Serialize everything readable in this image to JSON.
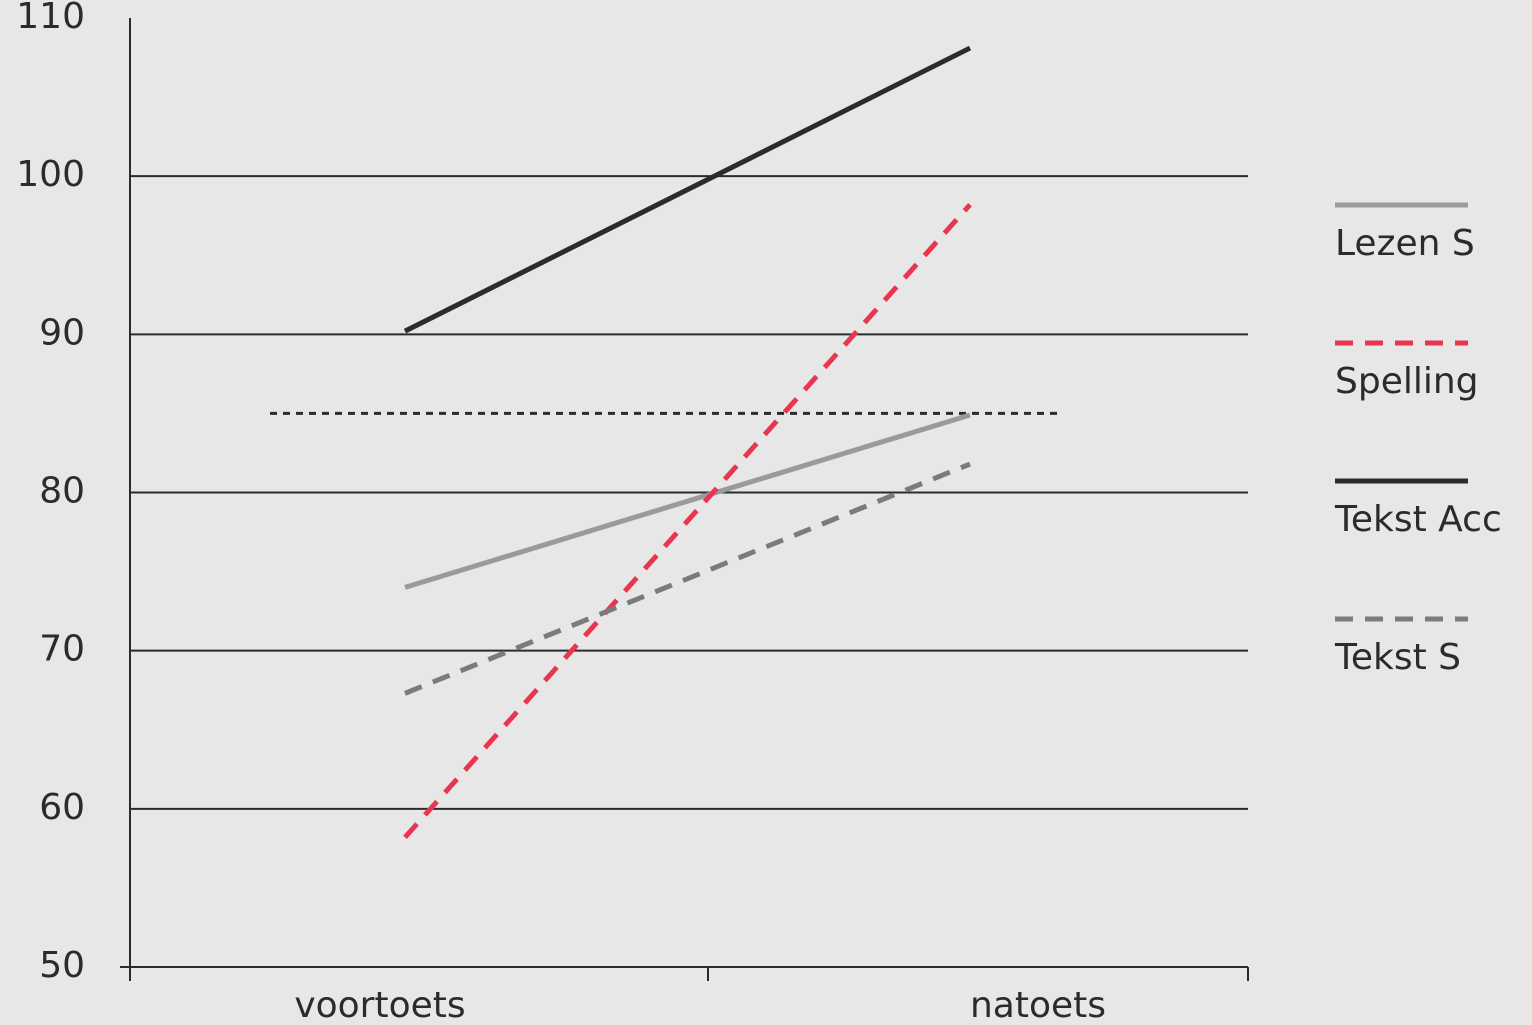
{
  "chart_data": {
    "type": "line",
    "categories": [
      "voortoets",
      "natoets"
    ],
    "series": [
      {
        "name": "Lezen S",
        "color": "#9a9a9c",
        "style": "solid",
        "values": [
          74,
          84.9
        ]
      },
      {
        "name": "Spelling",
        "color": "#e8364f",
        "style": "dashed",
        "values": [
          58.2,
          98.2
        ]
      },
      {
        "name": "Tekst Acc",
        "color": "#2b2b2e",
        "style": "solid",
        "values": [
          90.2,
          108.1
        ]
      },
      {
        "name": "Tekst S",
        "color": "#7b7b7e",
        "style": "dashed",
        "values": [
          67.3,
          81.8
        ]
      }
    ],
    "reference_line": {
      "value": 85,
      "color": "#2b2b2e",
      "style": "dotted"
    },
    "ylim": [
      50,
      110
    ],
    "yticks": [
      50,
      60,
      70,
      80,
      90,
      100,
      110
    ],
    "grid": true,
    "legend": "right"
  }
}
